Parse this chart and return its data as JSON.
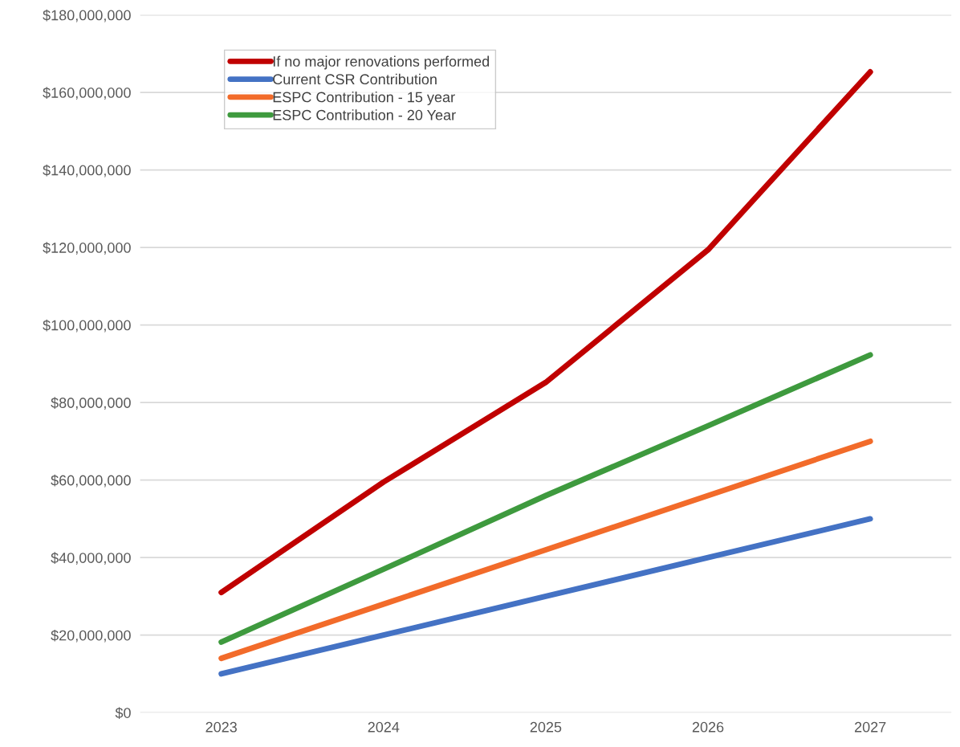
{
  "chart_data": {
    "type": "line",
    "categories": [
      "2023",
      "2024",
      "2025",
      "2026",
      "2027"
    ],
    "series": [
      {
        "name": "If no major renovations performed",
        "color": "#c00000",
        "values": [
          31000000,
          59500000,
          85200000,
          119400000,
          165300000
        ]
      },
      {
        "name": "Current CSR Contribution",
        "color": "#4472c4",
        "values": [
          10000000,
          20000000,
          30000000,
          40000000,
          50000000
        ]
      },
      {
        "name": "ESPC Contribution - 15 year",
        "color": "#f26b2a",
        "values": [
          14000000,
          28000000,
          42000000,
          56000000,
          70000000
        ]
      },
      {
        "name": "ESPC Contribution - 20 Year",
        "color": "#3e9a3e",
        "values": [
          18200000,
          37000000,
          56000000,
          74000000,
          92300000
        ]
      }
    ],
    "ylim": [
      0,
      180000000
    ],
    "yticks": [
      {
        "value": 0,
        "label": "$0"
      },
      {
        "value": 20000000,
        "label": "$20,000,000"
      },
      {
        "value": 40000000,
        "label": "$40,000,000"
      },
      {
        "value": 60000000,
        "label": "$60,000,000"
      },
      {
        "value": 80000000,
        "label": "$80,000,000"
      },
      {
        "value": 100000000,
        "label": "$100,000,000"
      },
      {
        "value": 120000000,
        "label": "$120,000,000"
      },
      {
        "value": 140000000,
        "label": "$140,000,000"
      },
      {
        "value": 160000000,
        "label": "$160,000,000"
      },
      {
        "value": 180000000,
        "label": "$180,000,000"
      }
    ],
    "grid": "y",
    "legend": "top left",
    "marker": "none",
    "line_style": "solid"
  }
}
